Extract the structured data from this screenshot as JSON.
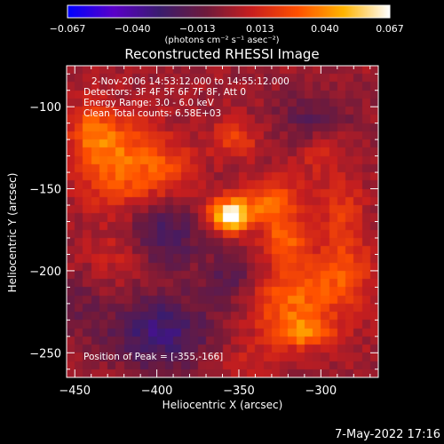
{
  "chart_data": {
    "type": "heatmap",
    "title": "Reconstructed RHESSI Image",
    "xlabel": "Heliocentric X (arcsec)",
    "ylabel": "Heliocentric Y (arcsec)",
    "xlim": [
      -455,
      -265
    ],
    "ylim": [
      -265,
      -75
    ],
    "x_ticks": [
      -450,
      -400,
      -350,
      -300
    ],
    "y_ticks": [
      -100,
      -150,
      -200,
      -250
    ],
    "x_tick_labels": [
      "−450",
      "−400",
      "−350",
      "−300"
    ],
    "y_tick_labels": [
      "−100",
      "−150",
      "−200",
      "−250"
    ],
    "colorbar": {
      "range": [
        -0.067,
        0.067
      ],
      "ticks": [
        -0.067,
        -0.04,
        -0.013,
        0.013,
        0.04,
        0.067
      ],
      "tick_labels": [
        "−0.067",
        "−0.040",
        "−0.013",
        "0.013",
        "0.040",
        "0.067"
      ],
      "units": "(photons cm⁻² s⁻¹ asec⁻²)",
      "colormap": [
        "#0000ff",
        "#5a00c8",
        "#3a1c6e",
        "#6e1a3c",
        "#c81e1e",
        "#ff5000",
        "#ffb400",
        "#ffffff"
      ]
    },
    "peak": {
      "x": -355,
      "y": -166,
      "value": 0.067
    },
    "sources": [
      {
        "x": -355,
        "y": -166,
        "sx": 9,
        "sy": 7,
        "amp": 0.07
      },
      {
        "x": -330,
        "y": -158,
        "sx": 12,
        "sy": 10,
        "amp": 0.03
      },
      {
        "x": -322,
        "y": -182,
        "sx": 9,
        "sy": 10,
        "amp": 0.03
      },
      {
        "x": -318,
        "y": -218,
        "sx": 20,
        "sy": 16,
        "amp": 0.033
      },
      {
        "x": -310,
        "y": -238,
        "sx": 14,
        "sy": 6,
        "amp": 0.03
      },
      {
        "x": -285,
        "y": -200,
        "sx": 12,
        "sy": 14,
        "amp": 0.024
      },
      {
        "x": -422,
        "y": -135,
        "sx": 16,
        "sy": 20,
        "amp": 0.034
      },
      {
        "x": -440,
        "y": -115,
        "sx": 10,
        "sy": 12,
        "amp": 0.026
      },
      {
        "x": -392,
        "y": -138,
        "sx": 12,
        "sy": 12,
        "amp": 0.02
      },
      {
        "x": -352,
        "y": -120,
        "sx": 10,
        "sy": 8,
        "amp": 0.022
      },
      {
        "x": -300,
        "y": -128,
        "sx": 12,
        "sy": 12,
        "amp": 0.014
      },
      {
        "x": -287,
        "y": -165,
        "sx": 10,
        "sy": 14,
        "amp": 0.018
      },
      {
        "x": -420,
        "y": -190,
        "sx": 14,
        "sy": 12,
        "amp": 0.012
      },
      {
        "x": -345,
        "y": -255,
        "sx": 14,
        "sy": 6,
        "amp": 0.012
      },
      {
        "x": -398,
        "y": -178,
        "sx": 16,
        "sy": 14,
        "amp": -0.026
      },
      {
        "x": -398,
        "y": -238,
        "sx": 22,
        "sy": 16,
        "amp": -0.03
      },
      {
        "x": -352,
        "y": -205,
        "sx": 14,
        "sy": 12,
        "amp": -0.02
      },
      {
        "x": -305,
        "y": -108,
        "sx": 16,
        "sy": 12,
        "amp": -0.018
      },
      {
        "x": -448,
        "y": -220,
        "sx": 10,
        "sy": 12,
        "amp": -0.01
      }
    ]
  },
  "annotations": {
    "time_range": "2-Nov-2006 14:53:12.000 to 14:55:12.000",
    "detectors": "Detectors: 3F 4F 5F 6F 7F 8F, Att 0",
    "energy": "Energy Range: 3.0 - 6.0 keV",
    "clean": "Clean     Total counts: 6.58E+03",
    "peak_position": "Position of Peak = [-355,-166]"
  },
  "footer_date": "7-May-2022 17:16"
}
